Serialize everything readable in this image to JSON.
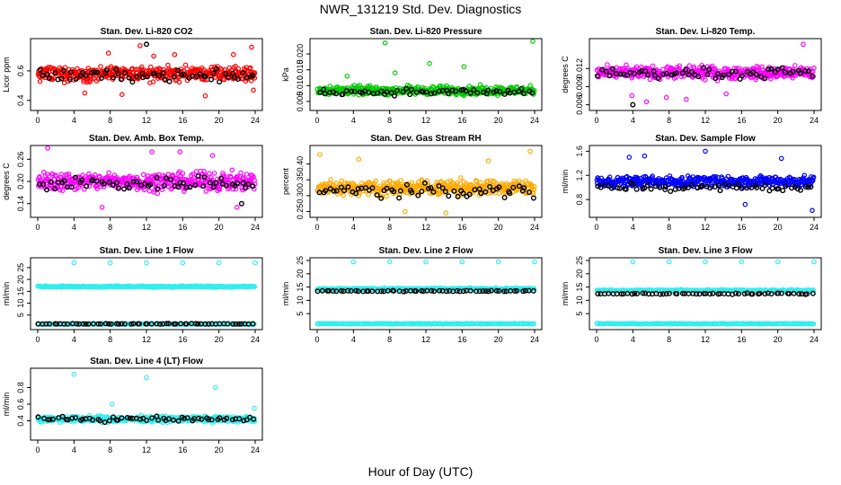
{
  "page": {
    "title": "NWR_131219  Std. Dev. Diagnostics",
    "xlabel": "Hour of Day (UTC)"
  },
  "chart_data": [
    {
      "type": "scatter",
      "title": "Stan. Dev. Li-820 CO2",
      "ylabel": "Licor ppm",
      "color": "#ff0000",
      "xlim": [
        0,
        24
      ],
      "xticks": [
        "0",
        "4",
        "8",
        "12",
        "16",
        "20",
        "24"
      ],
      "ylim": [
        0.35,
        0.8
      ],
      "yticks": [
        "0.4",
        "0.6"
      ],
      "ytick_values": [
        0.4,
        0.6
      ],
      "series": [
        {
          "name": "all_samples",
          "color": "#ff0000",
          "band": {
            "center": 0.58,
            "spread": 0.07,
            "count": 420
          },
          "outliers": [
            {
              "x": 7.8,
              "y": 0.72
            },
            {
              "x": 11.3,
              "y": 0.77
            },
            {
              "x": 12.8,
              "y": 0.7
            },
            {
              "x": 15.1,
              "y": 0.71
            },
            {
              "x": 21.6,
              "y": 0.71
            },
            {
              "x": 23.6,
              "y": 0.76
            },
            {
              "x": 9.3,
              "y": 0.44
            },
            {
              "x": 18.5,
              "y": 0.43
            },
            {
              "x": 23.8,
              "y": 0.47
            },
            {
              "x": 5.2,
              "y": 0.45
            }
          ]
        },
        {
          "name": "hourly_mean",
          "color": "#000000",
          "band": {
            "center": 0.57,
            "spread": 0.06,
            "count": 60
          },
          "outliers": [
            {
              "x": 12.0,
              "y": 0.78
            }
          ]
        }
      ]
    },
    {
      "type": "scatter",
      "title": "Stan. Dev. Li-820 Pressure",
      "ylabel": "kPa",
      "color": "#00cc00",
      "xlim": [
        0,
        24
      ],
      "xticks": [
        "0",
        "4",
        "8",
        "12",
        "16",
        "20",
        "24"
      ],
      "ylim": [
        0.003,
        0.024
      ],
      "yticks": [
        "0.005",
        "0.010",
        "0.015",
        "0.020"
      ],
      "ytick_values": [
        0.005,
        0.01,
        0.015,
        0.02
      ],
      "series": [
        {
          "name": "all_samples",
          "color": "#00cc00",
          "band": {
            "center": 0.0085,
            "spread": 0.002,
            "count": 420
          },
          "outliers": [
            {
              "x": 7.5,
              "y": 0.0235
            },
            {
              "x": 12.4,
              "y": 0.017
            },
            {
              "x": 16.2,
              "y": 0.016
            },
            {
              "x": 23.8,
              "y": 0.024
            },
            {
              "x": 3.3,
              "y": 0.013
            },
            {
              "x": 8.6,
              "y": 0.014
            }
          ]
        },
        {
          "name": "hourly_mean",
          "color": "#000000",
          "band": {
            "center": 0.008,
            "spread": 0.0015,
            "count": 60
          },
          "outliers": []
        }
      ]
    },
    {
      "type": "scatter",
      "title": "Stan. Dev. Li-820 Temp.",
      "ylabel": "degrees C",
      "color": "#ff00ff",
      "xlim": [
        0,
        24
      ],
      "xticks": [
        "0",
        "4",
        "8",
        "12",
        "16",
        "20",
        "24"
      ],
      "ylim": [
        0.0055,
        0.0165
      ],
      "yticks": [
        "0.006",
        "0.009",
        "0.012"
      ],
      "ytick_values": [
        0.006,
        0.009,
        0.012
      ],
      "series": [
        {
          "name": "all_samples",
          "color": "#ff00ff",
          "band": {
            "center": 0.0113,
            "spread": 0.0015,
            "count": 420
          },
          "outliers": [
            {
              "x": 3.9,
              "y": 0.0075
            },
            {
              "x": 5.5,
              "y": 0.0065
            },
            {
              "x": 7.7,
              "y": 0.0072
            },
            {
              "x": 22.8,
              "y": 0.016
            },
            {
              "x": 14.3,
              "y": 0.0078
            },
            {
              "x": 9.9,
              "y": 0.0069
            }
          ]
        },
        {
          "name": "hourly_mean",
          "color": "#000000",
          "band": {
            "center": 0.0112,
            "spread": 0.0012,
            "count": 60
          },
          "outliers": [
            {
              "x": 4.0,
              "y": 0.006
            }
          ]
        }
      ]
    },
    {
      "type": "scatter",
      "title": "Stan. Dev. Amb. Box Temp.",
      "ylabel": "degrees C",
      "color": "#ff00ff",
      "xlim": [
        0,
        24
      ],
      "xticks": [
        "0",
        "4",
        "8",
        "12",
        "16",
        "20",
        "24"
      ],
      "ylim": [
        0.11,
        0.29
      ],
      "yticks": [
        "0.14",
        "0.20",
        "0.26"
      ],
      "ytick_values": [
        0.14,
        0.2,
        0.26
      ],
      "series": [
        {
          "name": "all_samples",
          "color": "#ff00ff",
          "band": {
            "center": 0.2,
            "spread": 0.035,
            "count": 420
          },
          "outliers": [
            {
              "x": 12.6,
              "y": 0.28
            },
            {
              "x": 19.3,
              "y": 0.27
            },
            {
              "x": 7.1,
              "y": 0.13
            },
            {
              "x": 1.1,
              "y": 0.29
            },
            {
              "x": 22.0,
              "y": 0.13
            },
            {
              "x": 15.7,
              "y": 0.28
            }
          ]
        },
        {
          "name": "hourly_mean",
          "color": "#000000",
          "band": {
            "center": 0.195,
            "spread": 0.03,
            "count": 60
          },
          "outliers": [
            {
              "x": 22.5,
              "y": 0.14
            }
          ]
        }
      ]
    },
    {
      "type": "scatter",
      "title": "Stan. Dev. Gas Stream RH",
      "ylabel": "percent",
      "color": "#ffaa00",
      "xlim": [
        0,
        24
      ],
      "xticks": [
        "0",
        "4",
        "8",
        "12",
        "16",
        "20",
        "24"
      ],
      "ylim": [
        0.24,
        0.45
      ],
      "yticks": [
        "0.25",
        "0.30",
        "0.35",
        "0.40"
      ],
      "ytick_values": [
        0.25,
        0.3,
        0.35,
        0.4
      ],
      "series": [
        {
          "name": "all_samples",
          "color": "#ffaa00",
          "band": {
            "center": 0.325,
            "spread": 0.035,
            "count": 420
          },
          "outliers": [
            {
              "x": 0.3,
              "y": 0.43
            },
            {
              "x": 4.6,
              "y": 0.415
            },
            {
              "x": 23.5,
              "y": 0.44
            },
            {
              "x": 14.2,
              "y": 0.245
            },
            {
              "x": 9.7,
              "y": 0.25
            },
            {
              "x": 18.9,
              "y": 0.41
            }
          ]
        },
        {
          "name": "hourly_mean",
          "color": "#000000",
          "band": {
            "center": 0.315,
            "spread": 0.03,
            "count": 60
          },
          "outliers": []
        }
      ]
    },
    {
      "type": "scatter",
      "title": "Stan. Dev. Sample Flow",
      "ylabel": "ml/min",
      "color": "#0000ff",
      "xlim": [
        0,
        24
      ],
      "xticks": [
        "0",
        "4",
        "8",
        "12",
        "16",
        "20",
        "24"
      ],
      "ylim": [
        0.55,
        1.65
      ],
      "yticks": [
        "0.8",
        "1.2",
        "1.6"
      ],
      "ytick_values": [
        0.8,
        1.2,
        1.6
      ],
      "series": [
        {
          "name": "all_samples",
          "color": "#0000ff",
          "band": {
            "center": 1.1,
            "spread": 0.13,
            "count": 420
          },
          "outliers": [
            {
              "x": 12.0,
              "y": 1.6
            },
            {
              "x": 16.4,
              "y": 0.72
            },
            {
              "x": 23.8,
              "y": 0.62
            },
            {
              "x": 20.4,
              "y": 1.48
            },
            {
              "x": 3.6,
              "y": 1.5
            },
            {
              "x": 5.3,
              "y": 1.52
            }
          ]
        },
        {
          "name": "hourly_mean",
          "color": "#000000",
          "band": {
            "center": 1.0,
            "spread": 0.08,
            "count": 60
          },
          "outliers": []
        }
      ]
    },
    {
      "type": "scatter",
      "title": "Stan. Dev. Line 1 Flow",
      "ylabel": "ml/min",
      "color": "#33eeee",
      "xlim": [
        0,
        24
      ],
      "xticks": [
        "0",
        "4",
        "8",
        "12",
        "16",
        "20",
        "24"
      ],
      "ylim": [
        0,
        28
      ],
      "yticks": [
        "5",
        "10",
        "15",
        "20",
        "25"
      ],
      "ytick_values": [
        5,
        10,
        15,
        20,
        25
      ],
      "series": [
        {
          "name": "all_samples_high",
          "color": "#33eeee",
          "band": {
            "center": 17,
            "spread": 0.5,
            "count": 300
          },
          "outliers": [
            {
              "x": 4,
              "y": 27
            },
            {
              "x": 8,
              "y": 27
            },
            {
              "x": 12,
              "y": 27
            },
            {
              "x": 16,
              "y": 27
            },
            {
              "x": 20,
              "y": 27
            },
            {
              "x": 24,
              "y": 27
            }
          ]
        },
        {
          "name": "all_samples_low",
          "color": "#33eeee",
          "band": {
            "center": 1.2,
            "spread": 0.2,
            "count": 200
          },
          "outliers": []
        },
        {
          "name": "hourly_mean",
          "color": "#000000",
          "band": {
            "center": 1.3,
            "spread": 0.15,
            "count": 60
          },
          "outliers": []
        }
      ]
    },
    {
      "type": "scatter",
      "title": "Stan. Dev. Line 2 Flow",
      "ylabel": "ml/min",
      "color": "#33eeee",
      "xlim": [
        0,
        24
      ],
      "xticks": [
        "0",
        "4",
        "8",
        "12",
        "16",
        "20",
        "24"
      ],
      "ylim": [
        0,
        25
      ],
      "yticks": [
        "5",
        "10",
        "15",
        "20",
        "25"
      ],
      "ytick_values": [
        5,
        10,
        15,
        20,
        25
      ],
      "series": [
        {
          "name": "all_samples_high",
          "color": "#33eeee",
          "band": {
            "center": 14.3,
            "spread": 0.5,
            "count": 300
          },
          "outliers": [
            {
              "x": 4,
              "y": 24.5
            },
            {
              "x": 8,
              "y": 24.5
            },
            {
              "x": 12,
              "y": 24.5
            },
            {
              "x": 16,
              "y": 24.5
            },
            {
              "x": 20,
              "y": 24.5
            },
            {
              "x": 24,
              "y": 24.5
            }
          ]
        },
        {
          "name": "all_samples_low",
          "color": "#33eeee",
          "band": {
            "center": 1.2,
            "spread": 0.2,
            "count": 200
          },
          "outliers": []
        },
        {
          "name": "hourly_mean",
          "color": "#000000",
          "band": {
            "center": 13.5,
            "spread": 0.3,
            "count": 60
          },
          "outliers": []
        }
      ]
    },
    {
      "type": "scatter",
      "title": "Stan. Dev. Line 3 Flow",
      "ylabel": "ml/min",
      "color": "#33eeee",
      "xlim": [
        0,
        24
      ],
      "xticks": [
        "0",
        "4",
        "8",
        "12",
        "16",
        "20",
        "24"
      ],
      "ylim": [
        0,
        25
      ],
      "yticks": [
        "5",
        "10",
        "15",
        "20",
        "25"
      ],
      "ytick_values": [
        5,
        10,
        15,
        20,
        25
      ],
      "series": [
        {
          "name": "all_samples_high",
          "color": "#33eeee",
          "band": {
            "center": 13.7,
            "spread": 0.5,
            "count": 300
          },
          "outliers": [
            {
              "x": 4,
              "y": 24.5
            },
            {
              "x": 8,
              "y": 24.5
            },
            {
              "x": 12,
              "y": 24.5
            },
            {
              "x": 16,
              "y": 24.5
            },
            {
              "x": 20,
              "y": 24.5
            },
            {
              "x": 24,
              "y": 24.5
            }
          ]
        },
        {
          "name": "all_samples_low",
          "color": "#33eeee",
          "band": {
            "center": 1.2,
            "spread": 0.2,
            "count": 200
          },
          "outliers": []
        },
        {
          "name": "hourly_mean",
          "color": "#000000",
          "band": {
            "center": 12.5,
            "spread": 0.3,
            "count": 60
          },
          "outliers": []
        }
      ]
    },
    {
      "type": "scatter",
      "title": "Stan. Dev. Line 4 (LT) Flow",
      "ylabel": "ml/min",
      "color": "#33eeee",
      "xlim": [
        0,
        24
      ],
      "xticks": [
        "0",
        "4",
        "8",
        "12",
        "16",
        "20",
        "24"
      ],
      "ylim": [
        0.2,
        1.0
      ],
      "yticks": [
        "0.4",
        "0.6",
        "0.8"
      ],
      "ytick_values": [
        0.4,
        0.6,
        0.8
      ],
      "series": [
        {
          "name": "all_samples",
          "color": "#33eeee",
          "band": {
            "center": 0.42,
            "spread": 0.05,
            "count": 420
          },
          "outliers": [
            {
              "x": 4.0,
              "y": 0.96
            },
            {
              "x": 12.0,
              "y": 0.92
            },
            {
              "x": 19.6,
              "y": 0.8
            },
            {
              "x": 23.9,
              "y": 0.55
            },
            {
              "x": 8.2,
              "y": 0.6
            }
          ]
        },
        {
          "name": "hourly_mean",
          "color": "#000000",
          "band": {
            "center": 0.42,
            "spread": 0.04,
            "count": 60
          },
          "outliers": []
        }
      ]
    }
  ]
}
